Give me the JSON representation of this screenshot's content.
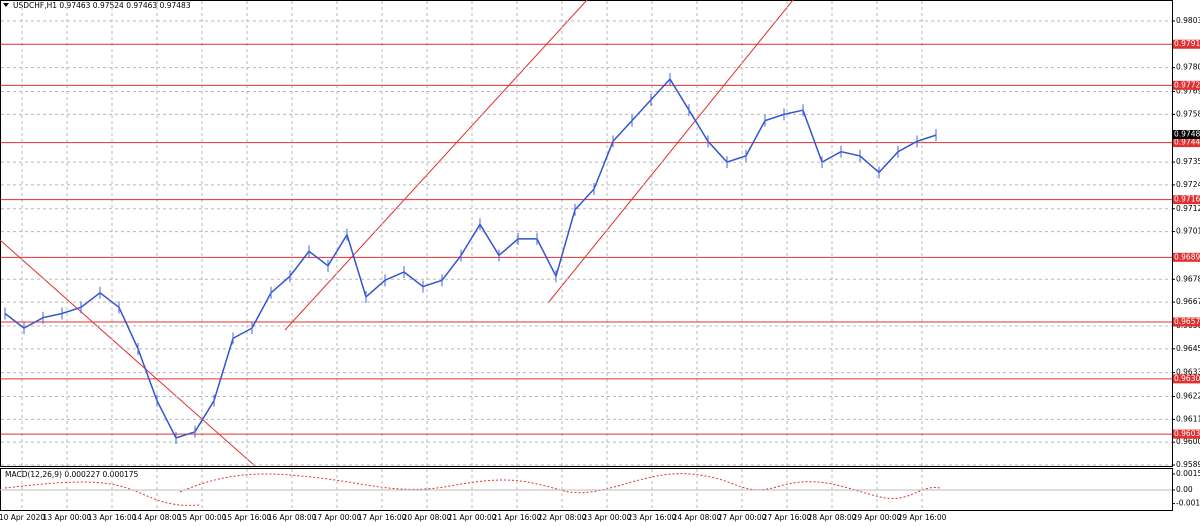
{
  "header": {
    "symbol_line": "USDCHF,H1  0.97463 0.97524 0.97463 0.97483",
    "indicator_line": "MACD(12,26,9) 0.000227 0.000175"
  },
  "price_axis": [
    {
      "value": 0.9803,
      "label": "0.98030"
    },
    {
      "value": 0.97805,
      "label": "0.97805"
    },
    {
      "value": 0.9769,
      "label": "0.97690"
    },
    {
      "value": 0.9758,
      "label": "0.97580"
    },
    {
      "value": 0.9735,
      "label": "0.97350"
    },
    {
      "value": 0.9724,
      "label": "0.97240"
    },
    {
      "value": 0.97125,
      "label": "0.97125"
    },
    {
      "value": 0.97015,
      "label": "0.97015"
    },
    {
      "value": 0.96785,
      "label": "0.96785"
    },
    {
      "value": 0.96675,
      "label": "0.96675"
    },
    {
      "value": 0.9656,
      "label": "0.96560"
    },
    {
      "value": 0.9645,
      "label": "0.96450"
    },
    {
      "value": 0.96335,
      "label": "0.96335"
    },
    {
      "value": 0.9622,
      "label": "0.96220"
    },
    {
      "value": 0.9611,
      "label": "0.96110"
    },
    {
      "value": 0.96,
      "label": "0.96000"
    },
    {
      "value": 0.9589,
      "label": "0.95890"
    }
  ],
  "levels": [
    {
      "value": 0.97918,
      "label": "0.97918"
    },
    {
      "value": 0.9772,
      "label": "0.97720"
    },
    {
      "value": 0.97444,
      "label": "0.97444"
    },
    {
      "value": 0.97169,
      "label": "0.97169"
    },
    {
      "value": 0.96891,
      "label": "0.96891"
    },
    {
      "value": 0.96579,
      "label": "0.96579"
    },
    {
      "value": 0.96305,
      "label": "0.96305"
    },
    {
      "value": 0.96039,
      "label": "0.96039"
    }
  ],
  "current_price": {
    "value": 0.97483,
    "label": "0.97483"
  },
  "macd_axis": [
    {
      "value": 0.001531,
      "label": "0.001531"
    },
    {
      "value": 0,
      "label": "0.00"
    },
    {
      "value": -0.0013,
      "label": "-0.0013"
    }
  ],
  "time_axis": [
    "10 Apr 2020",
    "13 Apr 00:00",
    "13 Apr 16:00",
    "14 Apr 08:00",
    "15 Apr 00:00",
    "15 Apr 16:00",
    "16 Apr 08:00",
    "17 Apr 00:00",
    "17 Apr 16:00",
    "20 Apr 08:00",
    "21 Apr 00:00",
    "21 Apr 16:00",
    "22 Apr 08:00",
    "23 Apr 00:00",
    "23 Apr 16:00",
    "24 Apr 08:00",
    "27 Apr 00:00",
    "27 Apr 16:00",
    "28 Apr 08:00",
    "29 Apr 00:00",
    "29 Apr 16:00"
  ],
  "price_series": [
    0.9662,
    0.9655,
    0.966,
    0.9662,
    0.9665,
    0.9672,
    0.9665,
    0.9645,
    0.962,
    0.9602,
    0.9605,
    0.962,
    0.965,
    0.9655,
    0.9672,
    0.968,
    0.9692,
    0.9685,
    0.97,
    0.967,
    0.9678,
    0.9682,
    0.9675,
    0.9678,
    0.969,
    0.9705,
    0.969,
    0.9698,
    0.9698,
    0.968,
    0.9712,
    0.9722,
    0.9745,
    0.9755,
    0.9765,
    0.9775,
    0.976,
    0.9745,
    0.9735,
    0.9738,
    0.9755,
    0.9758,
    0.976,
    0.9735,
    0.974,
    0.9738,
    0.973,
    0.974,
    0.9745,
    0.9748
  ]
}
